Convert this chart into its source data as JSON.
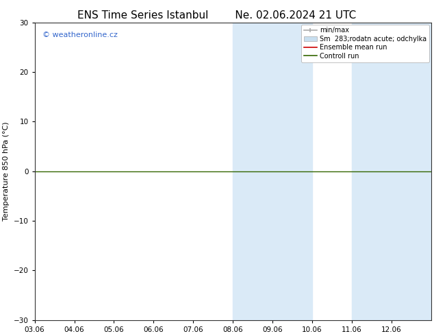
{
  "title": "ENS Time Series Istanbul",
  "title2": "Ne. 02.06.2024 21 UTC",
  "ylabel": "Temperature 850 hPa (°C)",
  "xlabel": "",
  "ylim": [
    -30,
    30
  ],
  "yticks": [
    -30,
    -20,
    -10,
    0,
    10,
    20,
    30
  ],
  "xtick_labels": [
    "03.06",
    "04.06",
    "05.06",
    "06.06",
    "07.06",
    "08.06",
    "09.06",
    "10.06",
    "11.06",
    "12.06"
  ],
  "num_ticks": 10,
  "shaded_regions": [
    {
      "xmin": 5,
      "xmax": 7,
      "color": "#daeaf7"
    },
    {
      "xmin": 8,
      "xmax": 10,
      "color": "#daeaf7"
    }
  ],
  "xlim": [
    0,
    10
  ],
  "horizontal_line_y": 0,
  "horizontal_line_color": "#336600",
  "watermark_text": "© weatheronline.cz",
  "watermark_color": "#3366cc",
  "background_color": "#ffffff",
  "legend_items": [
    {
      "label": "min/max",
      "color": "#aaaaaa",
      "lw": 1.2,
      "type": "line_tick"
    },
    {
      "label": "Sm  283;rodatn acute; odchylka",
      "color": "#c8dff0",
      "lw": 6,
      "type": "band"
    },
    {
      "label": "Ensemble mean run",
      "color": "#cc0000",
      "lw": 1.2,
      "type": "line"
    },
    {
      "label": "Controll run",
      "color": "#336600",
      "lw": 1.2,
      "type": "line"
    }
  ],
  "title_fontsize": 11,
  "axis_fontsize": 8,
  "tick_fontsize": 7.5,
  "legend_fontsize": 7
}
